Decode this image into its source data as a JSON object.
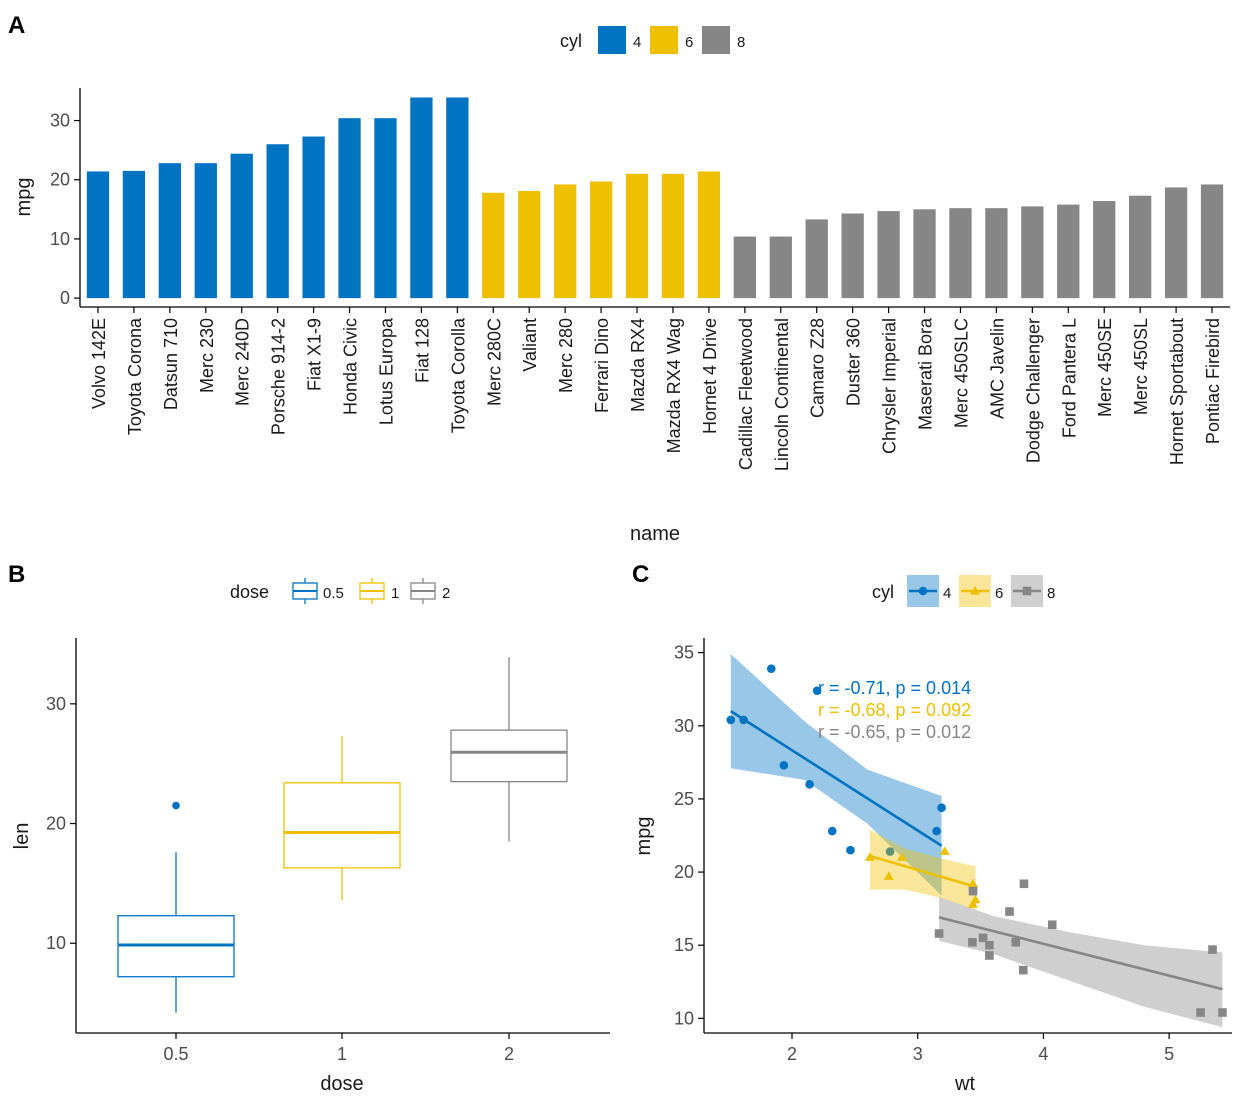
{
  "colors": {
    "c4": "#0073C2",
    "c6": "#EFC000",
    "c8": "#868686",
    "axis": "#000000",
    "text": "#1a1a1a",
    "tick": "#4d4d4d"
  },
  "chart_data": [
    {
      "panel_label": "A",
      "type": "bar",
      "xlabel": "name",
      "ylabel": "mpg",
      "ylim": [
        -1.5,
        35.5
      ],
      "yticks": [
        0,
        10,
        20,
        30
      ],
      "legend": {
        "title": "cyl",
        "position": "top",
        "items": [
          "4",
          "6",
          "8"
        ]
      },
      "categories": [
        "Volvo 142E",
        "Toyota Corona",
        "Datsun 710",
        "Merc 230",
        "Merc 240D",
        "Porsche 914-2",
        "Fiat X1-9",
        "Honda Civic",
        "Lotus Europa",
        "Fiat 128",
        "Toyota Corolla",
        "Merc 280C",
        "Valiant",
        "Merc 280",
        "Ferrari Dino",
        "Mazda RX4",
        "Mazda RX4 Wag",
        "Hornet 4 Drive",
        "Cadillac Fleetwood",
        "Lincoln Continental",
        "Camaro Z28",
        "Duster 360",
        "Chrysler Imperial",
        "Maserati Bora",
        "Merc 450SLC",
        "AMC Javelin",
        "Dodge Challenger",
        "Ford Pantera L",
        "Merc 450SE",
        "Merc 450SL",
        "Hornet Sportabout",
        "Pontiac Firebird"
      ],
      "values": [
        21.4,
        21.5,
        22.8,
        22.8,
        24.4,
        26.0,
        27.3,
        30.4,
        30.4,
        33.9,
        33.9,
        17.8,
        18.1,
        19.2,
        19.7,
        21.0,
        21.0,
        21.4,
        10.4,
        10.4,
        13.3,
        14.3,
        14.7,
        15.0,
        15.2,
        15.2,
        15.5,
        15.8,
        16.4,
        17.3,
        18.7,
        19.2
      ],
      "groups": [
        "4",
        "4",
        "4",
        "4",
        "4",
        "4",
        "4",
        "4",
        "4",
        "4",
        "4",
        "6",
        "6",
        "6",
        "6",
        "6",
        "6",
        "6",
        "8",
        "8",
        "8",
        "8",
        "8",
        "8",
        "8",
        "8",
        "8",
        "8",
        "8",
        "8",
        "8",
        "8"
      ]
    },
    {
      "panel_label": "B",
      "type": "boxplot",
      "xlabel": "dose",
      "ylabel": "len",
      "ylim": [
        2.5,
        35.5
      ],
      "yticks": [
        10,
        20,
        30
      ],
      "legend": {
        "title": "dose",
        "position": "top",
        "items": [
          "0.5",
          "1",
          "2"
        ]
      },
      "categories": [
        "0.5",
        "1",
        "2"
      ],
      "boxes": [
        {
          "whisker_low": 4.2,
          "q1": 7.2,
          "median": 9.85,
          "q3": 12.3,
          "whisker_high": 17.6,
          "outliers": [
            21.5
          ]
        },
        {
          "whisker_low": 13.6,
          "q1": 16.3,
          "median": 19.25,
          "q3": 23.4,
          "whisker_high": 27.3,
          "outliers": []
        },
        {
          "whisker_low": 18.5,
          "q1": 23.5,
          "median": 25.95,
          "q3": 27.8,
          "whisker_high": 33.9,
          "outliers": []
        }
      ]
    },
    {
      "panel_label": "C",
      "type": "scatter",
      "xlabel": "wt",
      "ylabel": "mpg",
      "xlim": [
        1.3,
        5.5
      ],
      "ylim": [
        9,
        36
      ],
      "xticks": [
        2,
        3,
        4,
        5
      ],
      "yticks": [
        10,
        15,
        20,
        25,
        30,
        35
      ],
      "legend": {
        "title": "cyl",
        "position": "top",
        "items": [
          "4",
          "6",
          "8"
        ]
      },
      "annotations": [
        "r = -0.71, p = 0.014",
        "r = -0.68, p = 0.092",
        "r = -0.65, p = 0.012"
      ],
      "series": [
        {
          "name": "4",
          "marker": "circle",
          "points": [
            [
              2.32,
              22.8
            ],
            [
              3.19,
              24.4
            ],
            [
              3.15,
              22.8
            ],
            [
              2.2,
              32.4
            ],
            [
              1.615,
              30.4
            ],
            [
              1.835,
              33.9
            ],
            [
              2.465,
              21.5
            ],
            [
              1.935,
              27.3
            ],
            [
              2.14,
              26.0
            ],
            [
              1.513,
              30.4
            ],
            [
              2.78,
              21.4
            ]
          ],
          "fit": [
            [
              1.513,
              31.0
            ],
            [
              3.19,
              21.8
            ]
          ],
          "band_upper": [
            [
              1.513,
              34.9
            ],
            [
              2.1,
              30.3
            ],
            [
              2.6,
              27.0
            ],
            [
              3.19,
              25.2
            ]
          ],
          "band_lower": [
            [
              1.513,
              27.1
            ],
            [
              2.1,
              26.3
            ],
            [
              2.6,
              23.3
            ],
            [
              3.19,
              18.4
            ]
          ]
        },
        {
          "name": "6",
          "marker": "triangle",
          "points": [
            [
              2.62,
              21.0
            ],
            [
              2.875,
              21.0
            ],
            [
              3.215,
              21.4
            ],
            [
              3.46,
              18.1
            ],
            [
              3.44,
              19.2
            ],
            [
              3.44,
              17.8
            ],
            [
              2.77,
              19.7
            ]
          ],
          "fit": [
            [
              2.62,
              21.1
            ],
            [
              3.46,
              19.0
            ]
          ],
          "band_upper": [
            [
              2.62,
              22.9
            ],
            [
              2.9,
              21.6
            ],
            [
              3.2,
              20.9
            ],
            [
              3.46,
              20.4
            ]
          ],
          "band_lower": [
            [
              2.62,
              18.8
            ],
            [
              2.9,
              18.8
            ],
            [
              3.2,
              18.2
            ],
            [
              3.46,
              17.4
            ]
          ]
        },
        {
          "name": "8",
          "marker": "square",
          "points": [
            [
              3.44,
              18.7
            ],
            [
              3.57,
              14.3
            ],
            [
              4.07,
              16.4
            ],
            [
              3.73,
              17.3
            ],
            [
              3.78,
              15.2
            ],
            [
              5.25,
              10.4
            ],
            [
              5.424,
              10.4
            ],
            [
              5.345,
              14.7
            ],
            [
              3.52,
              15.5
            ],
            [
              3.435,
              15.2
            ],
            [
              3.84,
              13.3
            ],
            [
              3.845,
              19.2
            ],
            [
              3.17,
              15.8
            ],
            [
              3.57,
              15.0
            ]
          ],
          "fit": [
            [
              3.17,
              16.9
            ],
            [
              5.424,
              12.0
            ]
          ],
          "band_upper": [
            [
              3.17,
              18.3
            ],
            [
              3.6,
              17.0
            ],
            [
              4.2,
              15.9
            ],
            [
              4.8,
              15.0
            ],
            [
              5.424,
              14.5
            ]
          ],
          "band_lower": [
            [
              3.17,
              15.3
            ],
            [
              3.6,
              14.4
            ],
            [
              4.2,
              12.6
            ],
            [
              4.8,
              10.8
            ],
            [
              5.424,
              9.4
            ]
          ]
        }
      ]
    }
  ]
}
